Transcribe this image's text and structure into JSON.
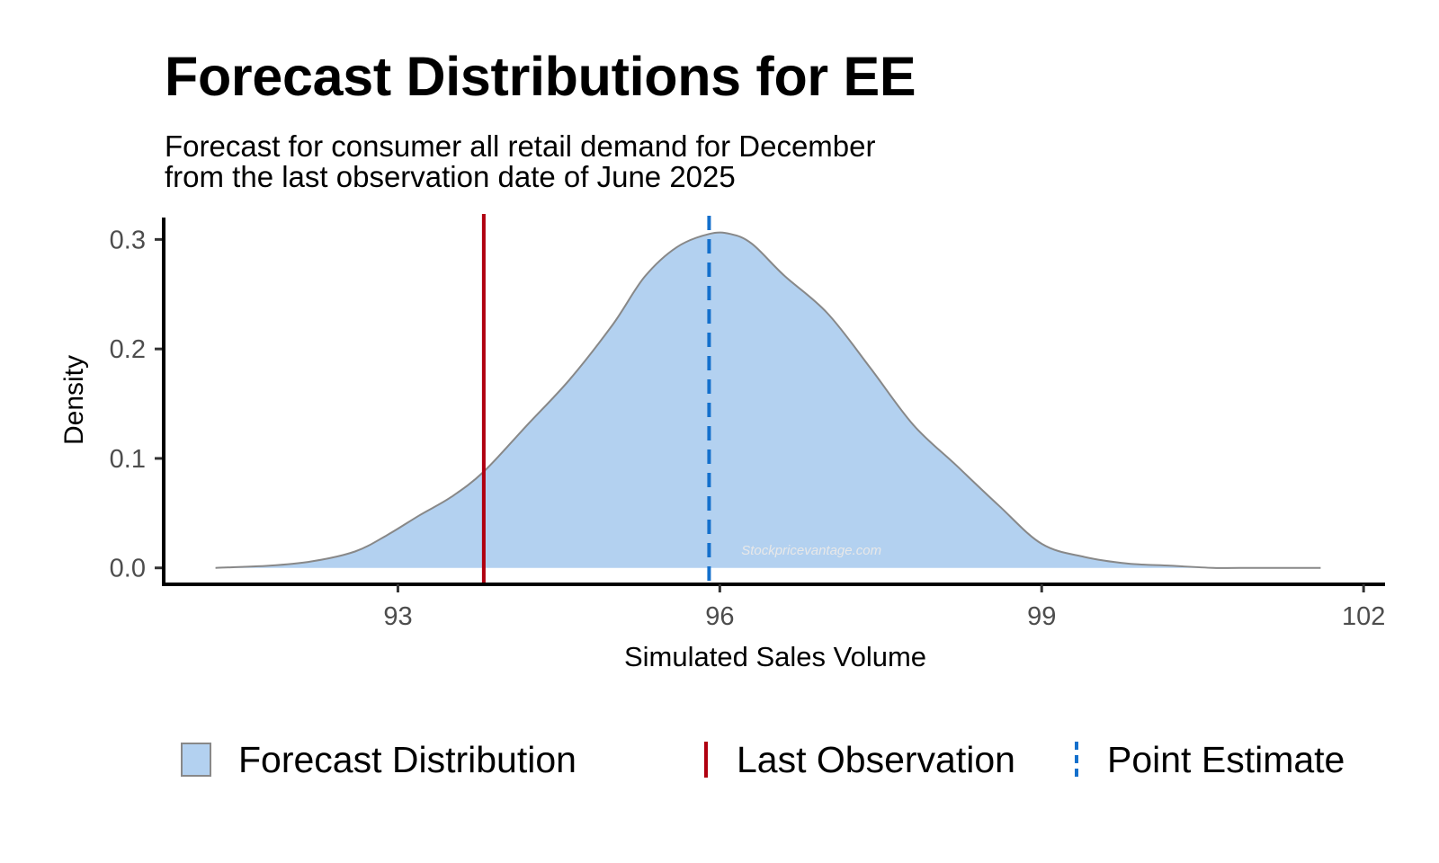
{
  "chart_data": {
    "type": "area",
    "title": "Forecast Distributions for EE",
    "subtitle": [
      "Forecast for consumer all retail demand for December",
      "from the last observation date of June 2025"
    ],
    "xlabel": "Simulated Sales Volume",
    "ylabel": "Density",
    "xlim": [
      90.8,
      102.2
    ],
    "ylim": [
      -0.015,
      0.32
    ],
    "x_ticks": [
      "93",
      "96",
      "99",
      "102"
    ],
    "x_tick_values": [
      93,
      96,
      99,
      102
    ],
    "y_ticks": [
      "0.0",
      "0.1",
      "0.2",
      "0.3"
    ],
    "y_tick_values": [
      0.0,
      0.1,
      0.2,
      0.3
    ],
    "grid": false,
    "legend_position": "bottom",
    "series": [
      {
        "name": "Forecast Distribution",
        "kind": "density",
        "fill": "#b3d1f0",
        "stroke": "#888888",
        "x": [
          91.3,
          91.8,
          92.2,
          92.6,
          92.9,
          93.2,
          93.5,
          93.8,
          94.2,
          94.6,
          95.0,
          95.3,
          95.6,
          95.9,
          96.1,
          96.3,
          96.6,
          97.0,
          97.4,
          97.8,
          98.2,
          98.6,
          99.0,
          99.4,
          99.8,
          100.2,
          100.6,
          101.0,
          101.6
        ],
        "y": [
          0.0,
          0.002,
          0.006,
          0.015,
          0.03,
          0.048,
          0.065,
          0.088,
          0.13,
          0.172,
          0.222,
          0.266,
          0.293,
          0.305,
          0.305,
          0.296,
          0.267,
          0.233,
          0.183,
          0.131,
          0.094,
          0.057,
          0.022,
          0.01,
          0.004,
          0.002,
          0.0,
          0.0,
          0.0
        ]
      },
      {
        "name": "Last Observation",
        "kind": "vline",
        "x": 93.8,
        "color": "#b0000f"
      },
      {
        "name": "Point Estimate",
        "kind": "vline-dashed",
        "x": 95.9,
        "color": "#1470cc"
      }
    ],
    "annotation": "Stockpricevantage.com"
  }
}
